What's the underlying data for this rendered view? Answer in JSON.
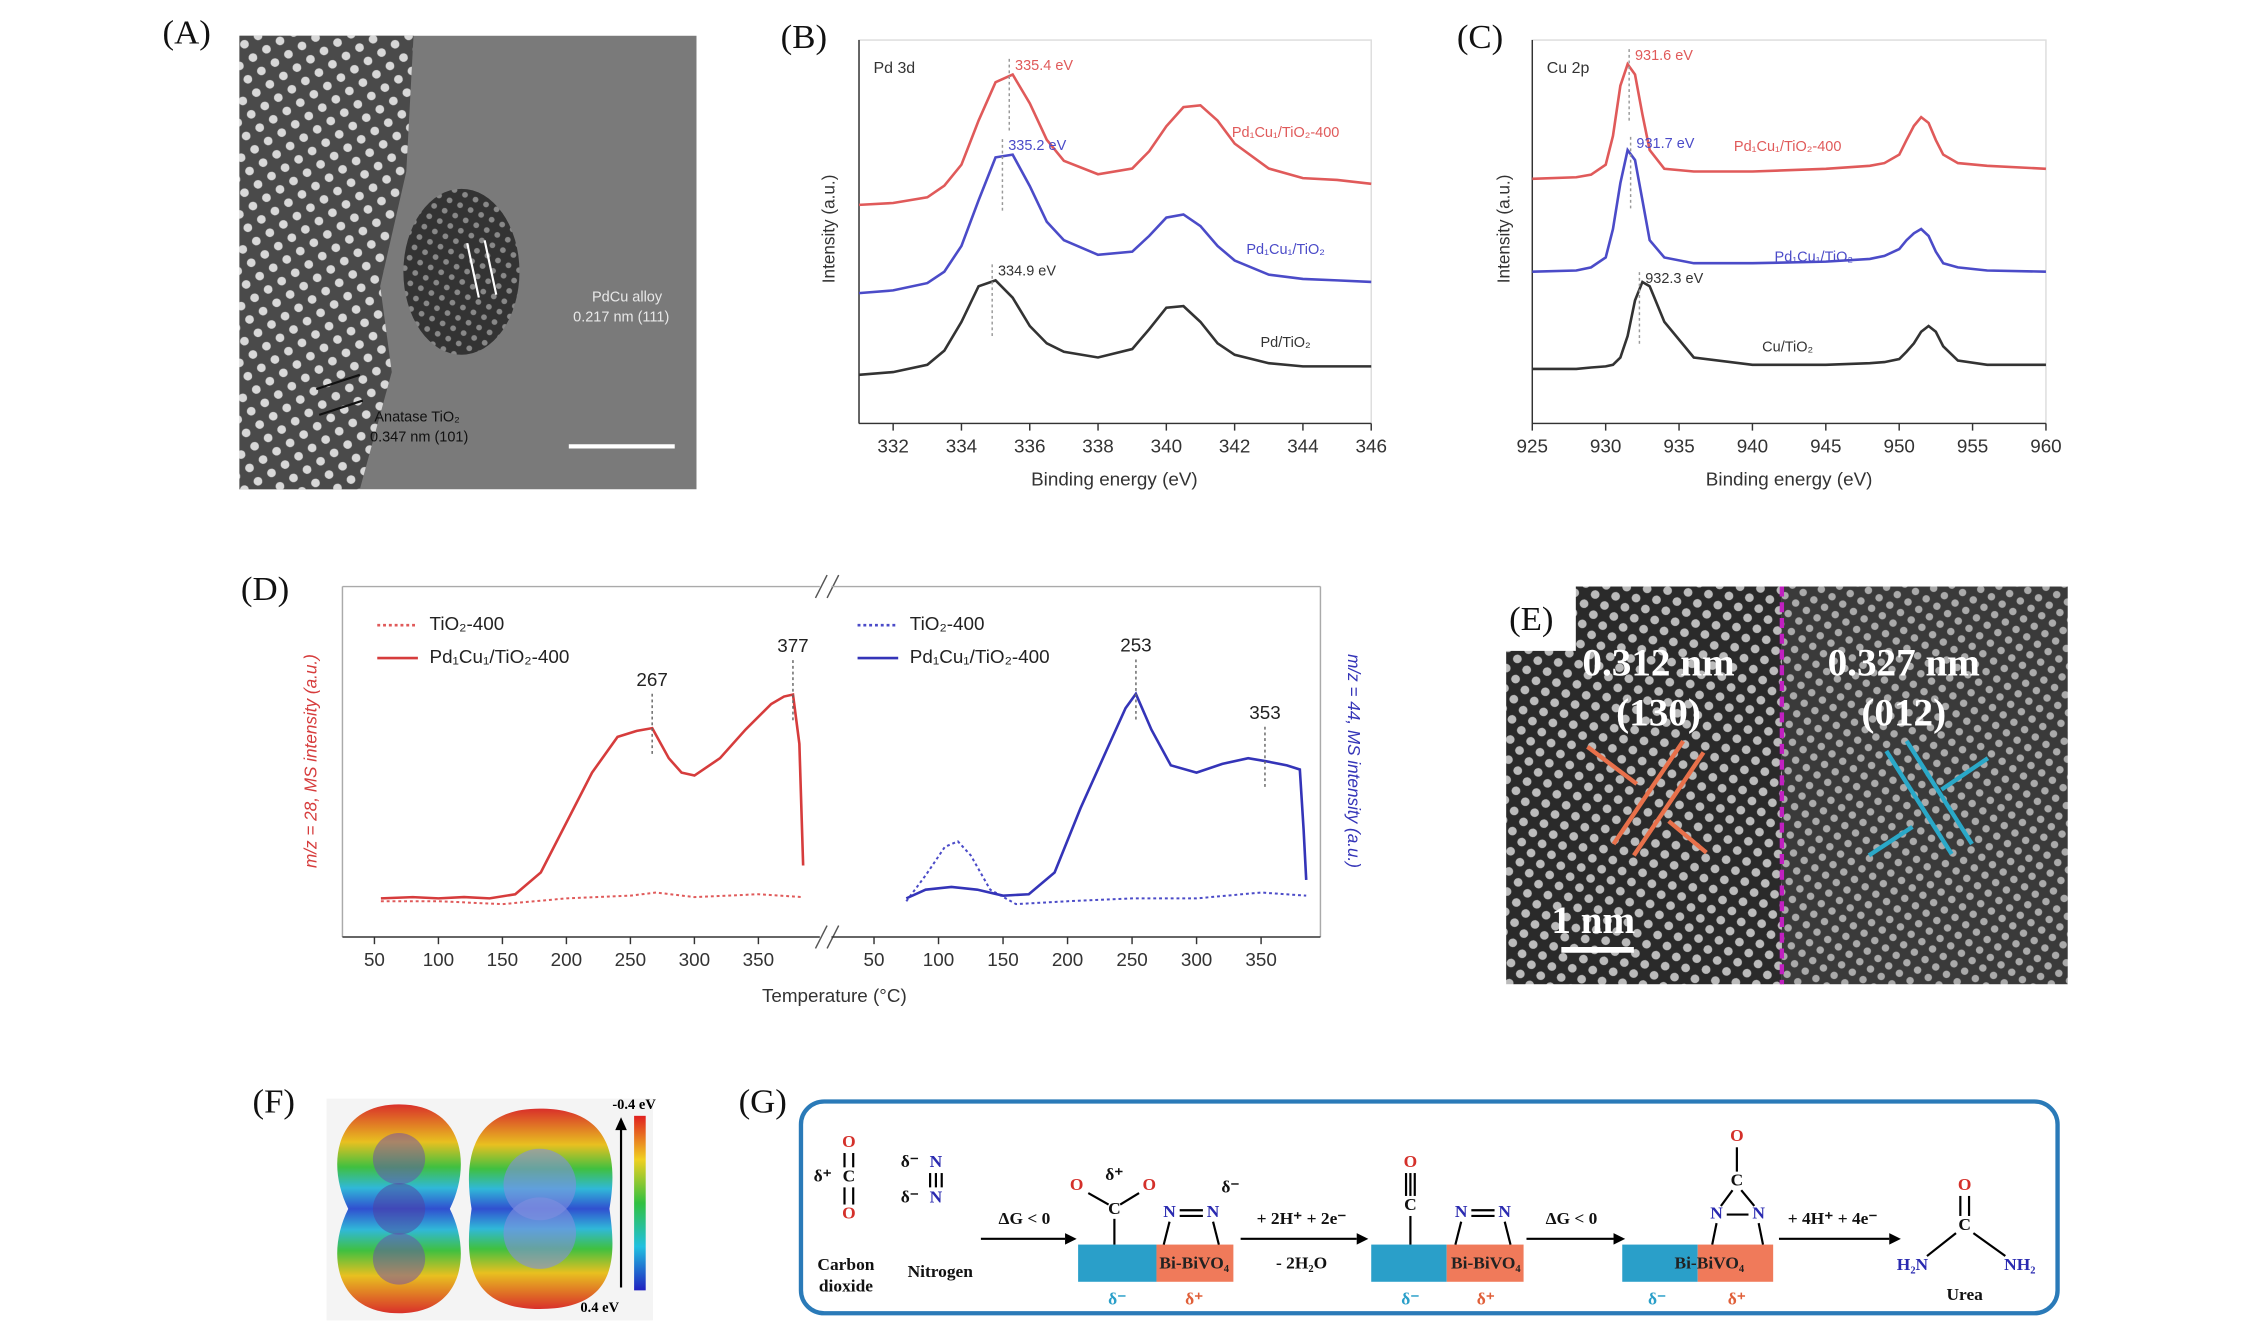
{
  "panel_labels": [
    "(A)",
    "(B)",
    "(C)",
    "(D)",
    "(E)",
    "(F)",
    "(G)"
  ],
  "panel_a": {
    "labels": [
      "PdCu alloy",
      "0.217 nm (111)",
      "Anatase TiO₂",
      "0.347 nm (101)"
    ]
  },
  "chart_data": [
    {
      "type": "line",
      "corner_label": "Pd 3d",
      "xlabel": "Binding energy (eV)",
      "ylabel": "Intensity (a.u.)",
      "x": [
        331,
        332,
        333,
        333.5,
        334,
        334.5,
        335,
        335.5,
        336,
        336.5,
        337,
        338,
        339,
        339.5,
        340,
        340.5,
        341,
        341.5,
        342,
        343,
        344,
        345,
        346
      ],
      "xlim": [
        331,
        346
      ],
      "xticks": [
        332,
        334,
        336,
        338,
        340,
        342,
        344,
        346
      ],
      "ylim": [
        0,
        100
      ],
      "series": [
        {
          "name": "Pd₁Cu₁/TiO₂-400",
          "color": "#e05a5a",
          "values": [
            57,
            57.5,
            59,
            62,
            67.5,
            79,
            89,
            91,
            83.5,
            74,
            68.5,
            65,
            66.5,
            71,
            77.5,
            82.5,
            83,
            79,
            73,
            66.5,
            64,
            63.5,
            62.5
          ],
          "peak": 335.4,
          "peak_label": "335.4 eV"
        },
        {
          "name": "Pd₁Cu₁/TiO₂",
          "color": "#4b4bc8",
          "values": [
            34,
            34.7,
            36.6,
            39.6,
            46.3,
            58.2,
            69.4,
            70.1,
            61.9,
            52.6,
            47.8,
            44,
            44.8,
            48.9,
            53.7,
            54.5,
            51.5,
            46.3,
            42.5,
            38.8,
            37.7,
            37.3,
            36.9
          ],
          "peak": 335.2,
          "peak_label": "335.2 eV"
        },
        {
          "name": "Pd/TiO₂",
          "color": "#333333",
          "values": [
            12.7,
            13.4,
            15.3,
            19,
            26.5,
            35.8,
            37.3,
            32.8,
            25.4,
            20.9,
            18.7,
            17.2,
            19.4,
            24.6,
            30.2,
            30.6,
            26.5,
            20.9,
            17.9,
            15.7,
            14.9,
            14.9,
            14.9
          ],
          "peak": 334.9,
          "peak_label": "334.9 eV"
        }
      ]
    },
    {
      "type": "line",
      "corner_label": "Cu 2p",
      "xlabel": "Binding energy (eV)",
      "ylabel": "Intensity (a.u.)",
      "x": [
        925,
        928,
        929,
        930,
        930.5,
        931,
        931.5,
        932,
        932.5,
        933,
        934,
        936,
        940,
        945,
        948,
        949,
        950,
        950.5,
        951,
        951.5,
        952,
        952.5,
        953,
        954,
        956,
        960
      ],
      "xlim": [
        925,
        960
      ],
      "xticks": [
        925,
        930,
        935,
        940,
        945,
        950,
        955,
        960
      ],
      "ylim": [
        0,
        100
      ],
      "series": [
        {
          "name": "Pd₁Cu₁/TiO₂-400",
          "color": "#e05a5a",
          "values": [
            63.8,
            64.2,
            64.9,
            67.5,
            75,
            88.1,
            93.7,
            91,
            80.6,
            71.3,
            66.4,
            65.7,
            65.7,
            66.4,
            67.2,
            67.9,
            70.1,
            73.9,
            77.6,
            79.9,
            78.4,
            73.9,
            70.1,
            67.9,
            67.2,
            66.4
          ],
          "peak": 931.6,
          "peak_label": "931.6 eV"
        },
        {
          "name": "Pd₁Cu₁/TiO₂",
          "color": "#4b4bc8",
          "values": [
            39.6,
            39.9,
            40.7,
            43.3,
            50.7,
            62.7,
            71.3,
            68.7,
            58.2,
            47.8,
            43.3,
            41.8,
            41.8,
            42.2,
            42.9,
            43.7,
            45.5,
            47.8,
            49.6,
            50.7,
            48.9,
            44.8,
            41.8,
            40.7,
            39.9,
            39.6
          ],
          "peak": 931.7,
          "peak_label": "931.7 eV"
        },
        {
          "name": "Cu/TiO₂",
          "color": "#333333",
          "values": [
            14.2,
            14.2,
            14.6,
            14.9,
            15.3,
            17.2,
            22.8,
            32.1,
            36.9,
            35.8,
            26.5,
            17.2,
            15.3,
            15.3,
            15.7,
            16,
            16.8,
            18.7,
            20.9,
            23.9,
            25.4,
            23.9,
            20.1,
            16.4,
            15.3,
            15.3
          ],
          "peak": 932.3,
          "peak_label": "932.3 eV"
        }
      ]
    },
    {
      "type": "line",
      "xlabel": "Temperature (°C)",
      "ylabel": "m/z = 28, MS intensity (a.u.)",
      "legend": "upper left",
      "xlim": [
        25,
        398
      ],
      "xticks": [
        50,
        100,
        150,
        200,
        250,
        300,
        350
      ],
      "ylim": [
        0,
        100
      ],
      "annotations": [
        267,
        377
      ],
      "series": [
        {
          "name": "TiO₂-400",
          "color": "#e05a5a",
          "style": "dotted",
          "x": [
            55,
            100,
            150,
            200,
            250,
            270,
            300,
            350,
            385
          ],
          "values": [
            10.2,
            10.2,
            9.4,
            11,
            11.8,
            12.7,
            11.4,
            12.2,
            11.4
          ]
        },
        {
          "name": "Pd₁Cu₁/TiO₂-400",
          "color": "#d63c3c",
          "style": "solid",
          "x": [
            55,
            80,
            100,
            120,
            140,
            160,
            180,
            200,
            220,
            240,
            255,
            267,
            280,
            290,
            300,
            320,
            340,
            360,
            370,
            377,
            382,
            385
          ],
          "values": [
            11,
            11.4,
            11,
            11.4,
            11,
            12.2,
            18.4,
            32.7,
            46.9,
            57.1,
            58.8,
            59.6,
            51,
            46.9,
            46.1,
            51,
            59.2,
            66.5,
            68.6,
            69.2,
            55.1,
            20.4
          ]
        }
      ]
    },
    {
      "type": "line",
      "ylabel": "m/z = 44, MS intensity (a.u.)",
      "legend": "upper left",
      "xlim": [
        17,
        396
      ],
      "xticks": [
        50,
        100,
        150,
        200,
        250,
        300,
        350
      ],
      "ylim": [
        0,
        100
      ],
      "annotations": [
        253,
        353
      ],
      "series": [
        {
          "name": "TiO₂-400",
          "color": "#4b4bc8",
          "style": "dotted",
          "x": [
            75,
            90,
            105,
            115,
            125,
            140,
            160,
            200,
            250,
            300,
            350,
            385
          ],
          "values": [
            10.2,
            17.6,
            25.7,
            27.3,
            23.3,
            13.5,
            9.4,
            10.2,
            11,
            11,
            12.7,
            11.8
          ]
        },
        {
          "name": "Pd₁Cu₁/TiO₂-400",
          "color": "#3434b8",
          "style": "solid",
          "x": [
            75,
            90,
            110,
            130,
            150,
            170,
            190,
            210,
            230,
            245,
            253,
            265,
            280,
            300,
            320,
            340,
            353,
            370,
            380,
            383,
            385
          ],
          "values": [
            11,
            13.5,
            14.3,
            13.5,
            11.8,
            12.2,
            18.4,
            36.7,
            53.1,
            65.3,
            69.4,
            59.2,
            49,
            46.9,
            49.4,
            51,
            50.2,
            49,
            47.8,
            30.6,
            16.3
          ]
        }
      ]
    }
  ],
  "panel_e": {
    "labels": [
      "0.312 nm",
      "(130)",
      "0.327 nm",
      "(012)",
      "1 nm"
    ]
  },
  "panel_f": {
    "colorbar": [
      "-0.4 eV",
      "0.4 eV"
    ]
  },
  "panel_g": {
    "texts": [
      "δ⁺",
      "O",
      "C",
      "O",
      "δ⁻",
      "N",
      "δ⁻",
      "N",
      "Carbon",
      "dioxide",
      "Nitrogen",
      "ΔG < 0",
      "O",
      "δ⁺",
      "O",
      "C",
      "N",
      "N",
      "δ⁻",
      "Bi-BiVO₄",
      "δ⁻",
      "δ⁺",
      "+ 2H⁺ + 2e⁻",
      "- 2H₂O",
      "O",
      "C",
      "N",
      "N",
      "Bi-BiVO₄",
      "δ⁻",
      "δ⁺",
      "ΔG < 0",
      "O",
      "C",
      "N",
      "N",
      "Bi-BiVO₄",
      "δ⁻",
      "δ⁺",
      "+ 4H⁺ + 4e⁻",
      "O",
      "C",
      "H₂N",
      "NH₂",
      "Urea"
    ]
  }
}
